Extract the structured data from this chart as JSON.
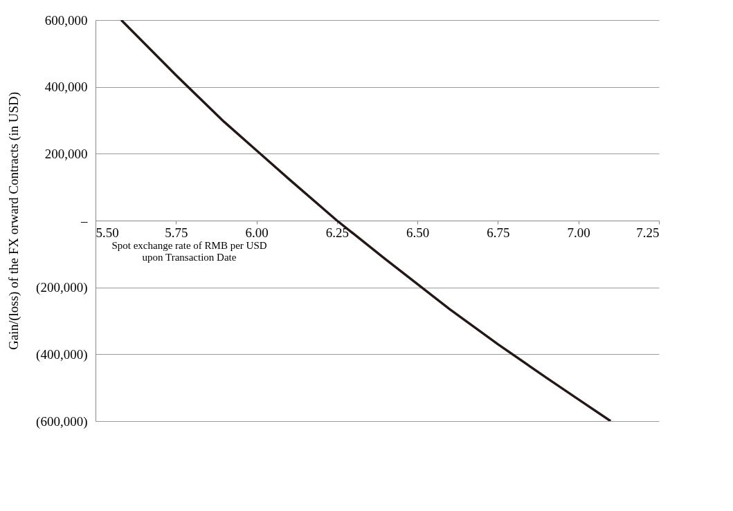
{
  "chart_data": {
    "type": "line",
    "xlabel": "Spot exchange rate of RMB per USD upon Transaction Date",
    "ylabel": "Gain/(loss) of the FX orward Contracts (in USD)",
    "x": [
      5.58,
      5.75,
      5.9,
      6.0,
      6.1,
      6.25,
      6.4,
      6.5,
      6.6,
      6.75,
      6.9,
      7.0,
      7.1
    ],
    "series": [
      {
        "color": "#231815",
        "values": [
          600000,
          435000,
          295000,
          210000,
          125000,
          0,
          -115000,
          -190000,
          -265000,
          -370000,
          -470000,
          -535000,
          -600000
        ]
      }
    ],
    "xlim": [
      5.5,
      7.25
    ],
    "xticks": [
      {
        "value": 5.5,
        "label": "5.50"
      },
      {
        "value": 5.75,
        "label": "5.75"
      },
      {
        "value": 6,
        "label": "6.00"
      },
      {
        "value": 6.25,
        "label": "6.25"
      },
      {
        "value": 6.5,
        "label": "6.50"
      },
      {
        "value": 6.75,
        "label": "6.75"
      },
      {
        "value": 7,
        "label": "7.00"
      },
      {
        "value": 7.25,
        "label": "7.25"
      }
    ],
    "ylim": [
      -600000,
      600000
    ],
    "yticks": [
      {
        "value": -600000,
        "label": "(600,000)"
      },
      {
        "value": -400000,
        "label": "(400,000)"
      },
      {
        "value": -200000,
        "label": "(200,000)"
      },
      {
        "value": 0,
        "label": "–"
      },
      {
        "value": 200000,
        "label": "200,000"
      },
      {
        "value": 400000,
        "label": "400,000"
      },
      {
        "value": 600000,
        "label": "600,000"
      }
    ],
    "grid": "y",
    "marker": "none",
    "line_style": "solid"
  }
}
